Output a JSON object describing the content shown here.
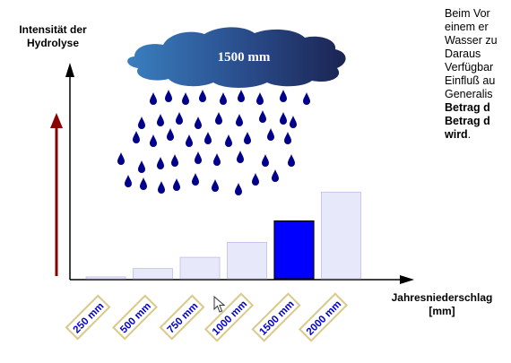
{
  "axes": {
    "y_label_line1": "Intensität der",
    "y_label_line2": "Hydrolyse",
    "x_label_line1": "Jahresniederschlag",
    "x_label_line2": "[mm]"
  },
  "cloud": {
    "label": "1500 mm"
  },
  "colors": {
    "bar_inactive": "#e8e8fb",
    "bar_inactive_stroke": "#bdbde8",
    "bar_active": "#0000ff",
    "raindrop": "#00008b",
    "arrow_red": "#8b0000",
    "tag_text": "#0000cc"
  },
  "chart_data": {
    "type": "bar",
    "categories": [
      "250 mm",
      "500 mm",
      "750 mm",
      "1000 mm",
      "1500 mm",
      "2000 mm"
    ],
    "values": [
      2,
      11,
      23,
      39,
      62,
      93
    ],
    "highlighted": "1500 mm",
    "ylim": [
      0,
      100
    ]
  },
  "side_text": {
    "lines": [
      {
        "text": "Beim Vor",
        "bold": false
      },
      {
        "text": "einem er",
        "bold": false
      },
      {
        "text": "Wasser zu",
        "bold": false
      },
      {
        "text": "Daraus",
        "bold": false
      },
      {
        "text": "Verfügbar",
        "bold": false
      },
      {
        "text": "Einfluß au",
        "bold": false
      },
      {
        "text": "Generalis",
        "bold": false
      },
      {
        "text": "Betrag d",
        "bold": true
      },
      {
        "text": "Betrag d",
        "bold": true
      },
      {
        "text": "wird",
        "bold": true,
        "suffix": "."
      }
    ]
  }
}
